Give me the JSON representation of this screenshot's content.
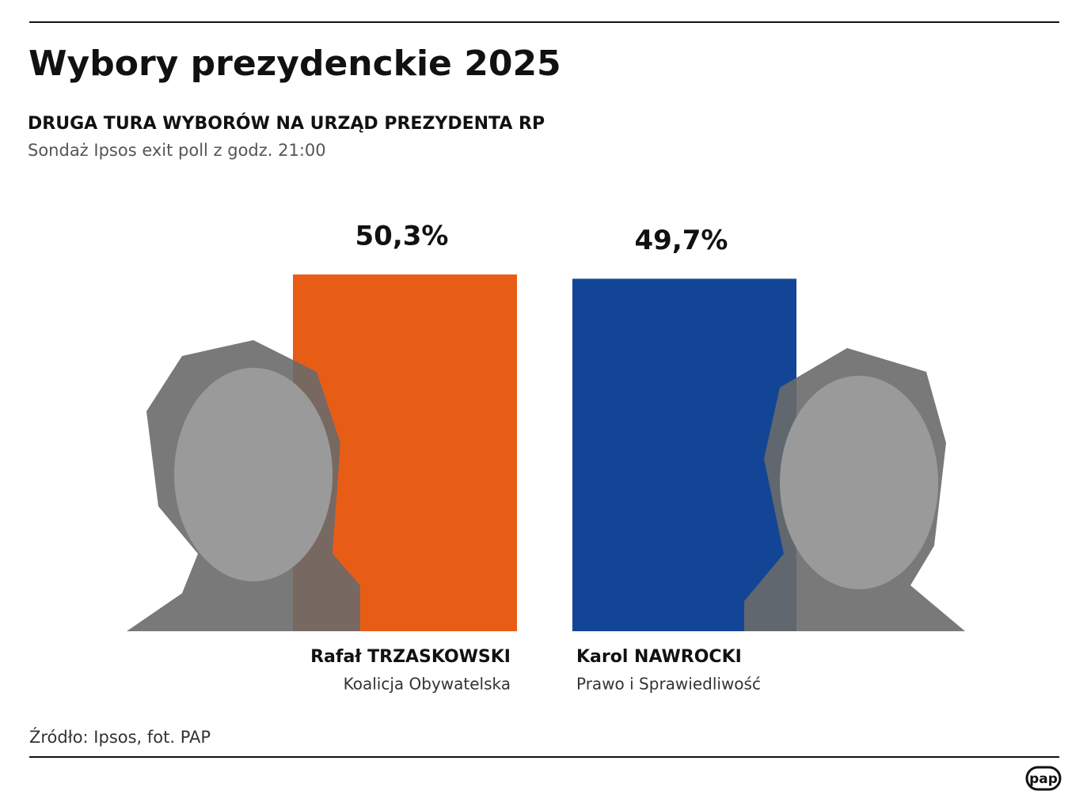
{
  "chart_data": {
    "type": "bar",
    "title": "Wybory prezydenckie 2025",
    "subtitle": "DRUGA TURA WYBORÓW NA URZĄD PREZYDENTA RP",
    "note": "Sondaż Ipsos exit poll z godz. 21:00",
    "categories": [
      "Rafał TRZASKOWSKI",
      "Karol NAWROCKI"
    ],
    "parties": [
      "Koalicja Obywatelska",
      "Prawo i Sprawiedliwość"
    ],
    "values": [
      50.3,
      49.7
    ],
    "value_labels": [
      "50,3%",
      "49,7%"
    ],
    "colors": [
      "#e85d16",
      "#134596"
    ],
    "source": "Źródło: Ipsos, fot. PAP",
    "logo": "pap"
  }
}
